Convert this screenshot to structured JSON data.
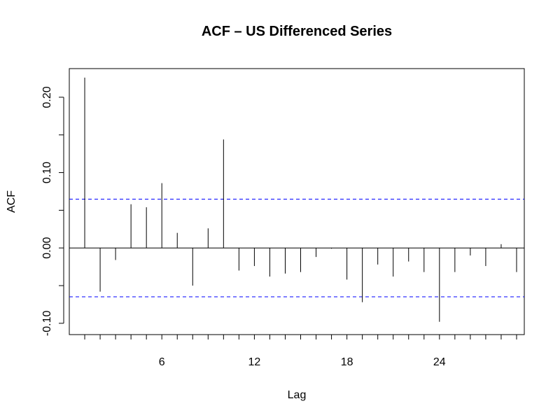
{
  "chart_data": {
    "type": "bar",
    "title": "ACF – US Differenced Series",
    "xlabel": "Lag",
    "ylabel": "ACF",
    "x": [
      1,
      2,
      3,
      4,
      5,
      6,
      7,
      8,
      9,
      10,
      11,
      12,
      13,
      14,
      15,
      16,
      17,
      18,
      19,
      20,
      21,
      22,
      23,
      24,
      25,
      26,
      27,
      28,
      29
    ],
    "values": [
      0.226,
      -0.058,
      -0.016,
      0.058,
      0.054,
      0.086,
      0.02,
      -0.05,
      0.026,
      0.144,
      -0.03,
      -0.024,
      -0.038,
      -0.034,
      -0.032,
      -0.012,
      -0.001,
      -0.042,
      -0.072,
      -0.022,
      -0.038,
      -0.018,
      -0.032,
      -0.098,
      -0.032,
      -0.01,
      -0.024,
      0.005,
      -0.032
    ],
    "xlim": [
      0,
      29.5
    ],
    "ylim": [
      -0.115,
      0.238
    ],
    "x_ticks": [
      6,
      12,
      18,
      24
    ],
    "x_minor_ticks": [
      1,
      2,
      3,
      4,
      5,
      6,
      7,
      8,
      9,
      10,
      11,
      12,
      13,
      14,
      15,
      16,
      17,
      18,
      19,
      20,
      21,
      22,
      23,
      24,
      25,
      26,
      27,
      28,
      29
    ],
    "y_ticks": [
      -0.1,
      -0.05,
      0.0,
      0.05,
      0.1,
      0.15,
      0.2
    ],
    "y_tick_labels": [
      "-0.10",
      "",
      "0.00",
      "",
      "0.10",
      "",
      "0.20"
    ],
    "confidence_bound": 0.0648,
    "confidence_color": "#0000ff",
    "grid": false,
    "legend": "none"
  }
}
